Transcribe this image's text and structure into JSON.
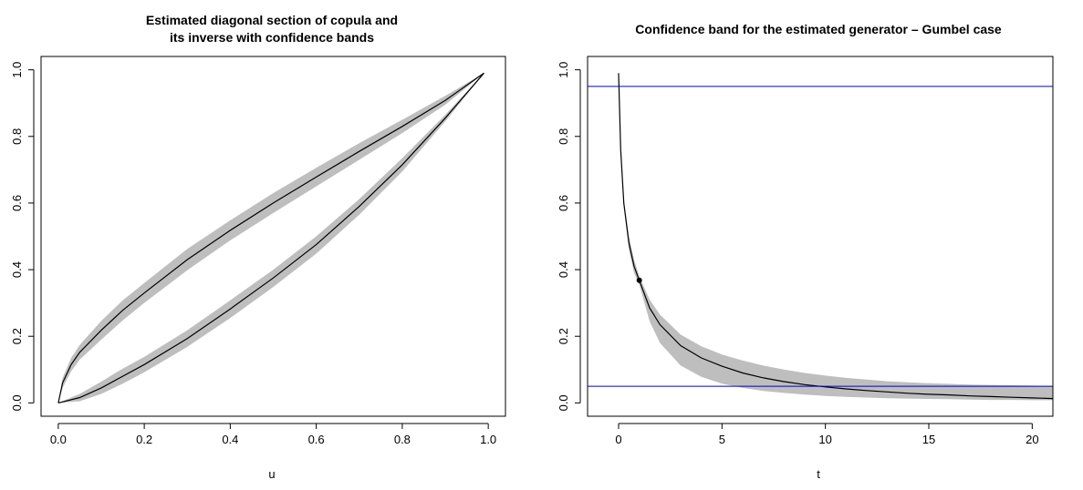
{
  "chart_data": [
    {
      "type": "line",
      "title_lines": [
        "Estimated diagonal section of copula and",
        "its inverse with confidence bands"
      ],
      "xlabel": "u",
      "ylabel": "",
      "xlim": [
        0,
        1
      ],
      "ylim": [
        0,
        1
      ],
      "xticks": [
        "0.0",
        "0.2",
        "0.4",
        "0.6",
        "0.8",
        "1.0"
      ],
      "yticks": [
        "0.0",
        "0.2",
        "0.4",
        "0.6",
        "0.8",
        "1.0"
      ],
      "grid": false,
      "legend": "none",
      "band_color": "#bebebe",
      "line_color": "#000000",
      "series": [
        {
          "x": [
            0,
            0.05,
            0.1,
            0.15,
            0.2,
            0.3,
            0.4,
            0.5,
            0.6,
            0.7,
            0.8,
            0.9,
            0.99
          ],
          "y": [
            0.0,
            0.016,
            0.045,
            0.08,
            0.115,
            0.193,
            0.282,
            0.375,
            0.475,
            0.59,
            0.715,
            0.855,
            0.99
          ],
          "lower": [
            0.0,
            0.005,
            0.027,
            0.058,
            0.092,
            0.168,
            0.255,
            0.348,
            0.448,
            0.565,
            0.695,
            0.845,
            0.99
          ],
          "upper": [
            0.0,
            0.027,
            0.064,
            0.103,
            0.138,
            0.218,
            0.308,
            0.4,
            0.5,
            0.612,
            0.735,
            0.865,
            0.99
          ]
        },
        {
          "x": [
            0,
            0.01,
            0.03,
            0.05,
            0.1,
            0.15,
            0.2,
            0.3,
            0.4,
            0.5,
            0.6,
            0.7,
            0.8,
            0.9,
            0.99
          ],
          "y": [
            0.0,
            0.06,
            0.115,
            0.152,
            0.218,
            0.278,
            0.33,
            0.43,
            0.518,
            0.6,
            0.678,
            0.755,
            0.83,
            0.908,
            0.99
          ],
          "lower": [
            0.0,
            0.045,
            0.095,
            0.13,
            0.19,
            0.248,
            0.3,
            0.398,
            0.488,
            0.57,
            0.65,
            0.73,
            0.81,
            0.895,
            0.99
          ],
          "upper": [
            0.0,
            0.075,
            0.135,
            0.174,
            0.246,
            0.308,
            0.36,
            0.462,
            0.548,
            0.63,
            0.706,
            0.78,
            0.85,
            0.922,
            0.99
          ]
        }
      ]
    },
    {
      "type": "line",
      "title_lines": [
        "Confidence band for the estimated  generator – Gumbel case"
      ],
      "xlabel": "t",
      "ylabel": "",
      "xlim": [
        -2,
        21
      ],
      "ylim": [
        0,
        1
      ],
      "xticks": [
        "0",
        "5",
        "10",
        "15",
        "20"
      ],
      "yticks": [
        "0.0",
        "0.2",
        "0.4",
        "0.6",
        "0.8",
        "1.0"
      ],
      "grid": false,
      "legend": "none",
      "band_color": "#bebebe",
      "line_color": "#000000",
      "hline_color": "#0000cd",
      "hlines": [
        0.95,
        0.05
      ],
      "point": {
        "x": 1,
        "y": 0.368
      },
      "series": [
        {
          "x": [
            0,
            0.1,
            0.25,
            0.5,
            0.75,
            1,
            1.5,
            2,
            3,
            4,
            5,
            6,
            7,
            8,
            9,
            10,
            11,
            12,
            13,
            14,
            15,
            16,
            17,
            18,
            19,
            20,
            21
          ],
          "y": [
            0.99,
            0.76,
            0.6,
            0.48,
            0.41,
            0.368,
            0.285,
            0.235,
            0.172,
            0.135,
            0.11,
            0.09,
            0.075,
            0.064,
            0.055,
            0.048,
            0.042,
            0.037,
            0.033,
            0.029,
            0.026,
            0.024,
            0.021,
            0.019,
            0.017,
            0.015,
            0.013
          ],
          "lower": [
            0.99,
            0.75,
            0.59,
            0.46,
            0.39,
            0.355,
            0.245,
            0.18,
            0.112,
            0.078,
            0.058,
            0.045,
            0.036,
            0.03,
            0.025,
            0.021,
            0.018,
            0.016,
            0.014,
            0.013,
            0.012,
            0.011,
            0.01,
            0.009,
            0.009,
            0.008,
            0.008
          ],
          "upper": [
            0.99,
            0.77,
            0.61,
            0.5,
            0.43,
            0.38,
            0.31,
            0.265,
            0.205,
            0.17,
            0.145,
            0.127,
            0.112,
            0.1,
            0.09,
            0.082,
            0.075,
            0.07,
            0.065,
            0.062,
            0.059,
            0.057,
            0.055,
            0.054,
            0.053,
            0.052,
            0.051
          ]
        }
      ]
    }
  ]
}
